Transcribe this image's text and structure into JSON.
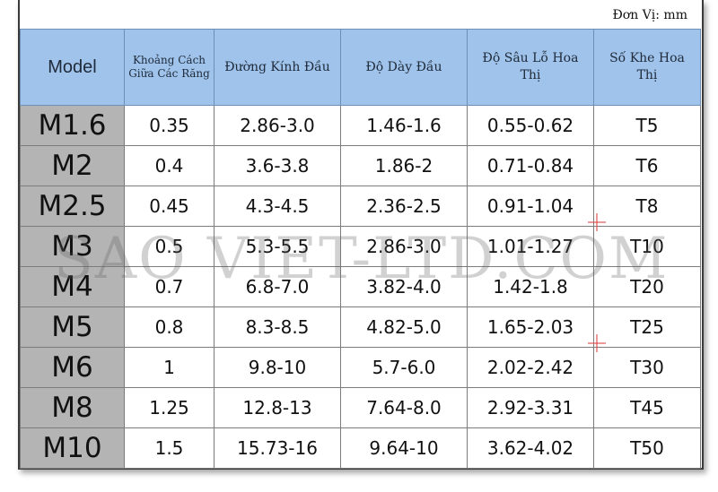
{
  "unit_label": "Đơn Vị: mm",
  "headers": {
    "model": "Model",
    "pitch": "Khoảng Cách Giữa Các Răng",
    "head_diameter": "Đường Kính Đầu",
    "head_thickness": "Độ Dày Đầu",
    "recess_depth": "Độ Sâu Lỗ Hoa Thị",
    "torx_size": "Số Khe Hoa Thị"
  },
  "rows": [
    {
      "model": "M1.6",
      "pitch": "0.35",
      "head_diameter": "2.86-3.0",
      "head_thickness": "1.46-1.6",
      "recess_depth": "0.55-0.62",
      "torx_size": "T5"
    },
    {
      "model": "M2",
      "pitch": "0.4",
      "head_diameter": "3.6-3.8",
      "head_thickness": "1.86-2",
      "recess_depth": "0.71-0.84",
      "torx_size": "T6"
    },
    {
      "model": "M2.5",
      "pitch": "0.45",
      "head_diameter": "4.3-4.5",
      "head_thickness": "2.36-2.5",
      "recess_depth": "0.91-1.04",
      "torx_size": "T8"
    },
    {
      "model": "M3",
      "pitch": "0.5",
      "head_diameter": "5.3-5.5",
      "head_thickness": "2.86-3.0",
      "recess_depth": "1.01-1.27",
      "torx_size": "T10"
    },
    {
      "model": "M4",
      "pitch": "0.7",
      "head_diameter": "6.8-7.0",
      "head_thickness": "3.82-4.0",
      "recess_depth": "1.42-1.8",
      "torx_size": "T20"
    },
    {
      "model": "M5",
      "pitch": "0.8",
      "head_diameter": "8.3-8.5",
      "head_thickness": "4.82-5.0",
      "recess_depth": "1.65-2.03",
      "torx_size": "T25"
    },
    {
      "model": "M6",
      "pitch": "1",
      "head_diameter": "9.8-10",
      "head_thickness": "5.7-6.0",
      "recess_depth": "2.02-2.42",
      "torx_size": "T30"
    },
    {
      "model": "M8",
      "pitch": "1.25",
      "head_diameter": "12.8-13",
      "head_thickness": "7.64-8.0",
      "recess_depth": "2.92-3.31",
      "torx_size": "T45"
    },
    {
      "model": "M10",
      "pitch": "1.5",
      "head_diameter": "15.73-16",
      "head_thickness": "9.64-10",
      "recess_depth": "3.62-4.02",
      "torx_size": "T50"
    }
  ],
  "watermark": "SAO VIET-LTD.COM",
  "colors": {
    "header_bg": "#9fc3ea",
    "model_cell_bg": "#b4b4b4",
    "border": "#7c7c7c"
  }
}
